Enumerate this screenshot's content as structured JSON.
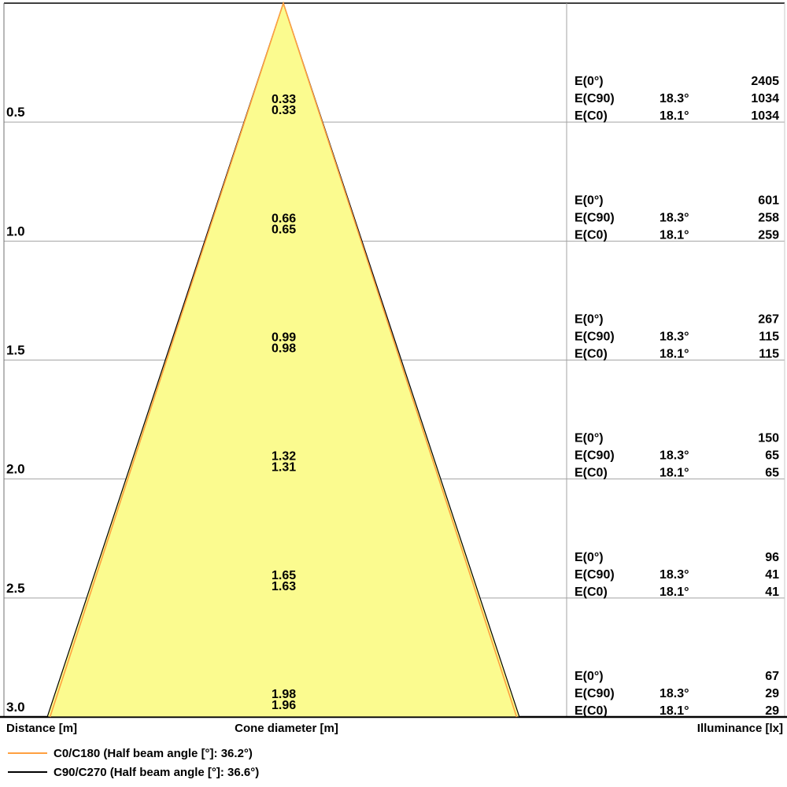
{
  "chart_data": {
    "type": "area",
    "subtype": "photometric-light-cone-diagram",
    "distance_axis_label": "Distance [m]",
    "cone_axis_label": "Cone diameter [m]",
    "illuminance_axis_label": "Illuminance [lx]",
    "e_row_labels": [
      "E(0°)",
      "E(C90)",
      "E(C0)"
    ],
    "rows": [
      {
        "distance": "0.5",
        "cone_c90": "0.33",
        "cone_c0": "0.33",
        "e0": "2405",
        "ec90_angle": "18.3°",
        "ec90": "1034",
        "ec0_angle": "18.1°",
        "ec0": "1034"
      },
      {
        "distance": "1.0",
        "cone_c90": "0.66",
        "cone_c0": "0.65",
        "e0": "601",
        "ec90_angle": "18.3°",
        "ec90": "258",
        "ec0_angle": "18.1°",
        "ec0": "259"
      },
      {
        "distance": "1.5",
        "cone_c90": "0.99",
        "cone_c0": "0.98",
        "e0": "267",
        "ec90_angle": "18.3°",
        "ec90": "115",
        "ec0_angle": "18.1°",
        "ec0": "115"
      },
      {
        "distance": "2.0",
        "cone_c90": "1.32",
        "cone_c0": "1.31",
        "e0": "150",
        "ec90_angle": "18.3°",
        "ec90": "65",
        "ec0_angle": "18.1°",
        "ec0": "65"
      },
      {
        "distance": "2.5",
        "cone_c90": "1.65",
        "cone_c0": "1.63",
        "e0": "96",
        "ec90_angle": "18.3°",
        "ec90": "41",
        "ec0_angle": "18.1°",
        "ec0": "41"
      },
      {
        "distance": "3.0",
        "cone_c90": "1.98",
        "cone_c0": "1.96",
        "e0": "67",
        "ec90_angle": "18.3°",
        "ec90": "29",
        "ec0_angle": "18.1°",
        "ec0": "29"
      }
    ],
    "legend": [
      {
        "color": "#FFA040",
        "label": "C0/C180 (Half beam angle [°]: 36.2°)"
      },
      {
        "color": "#000000",
        "label": "C90/C270 (Half beam angle [°]: 36.6°)"
      }
    ],
    "cone": {
      "half_angle_c90_deg": 18.3,
      "half_angle_c0_deg": 18.1,
      "max_distance_m": 3.0,
      "fill_color": "#FBFB8F",
      "outline_c90_color": "#000000",
      "outline_c0_color": "#FFA040",
      "grid_color": "#A3A3A3"
    }
  }
}
